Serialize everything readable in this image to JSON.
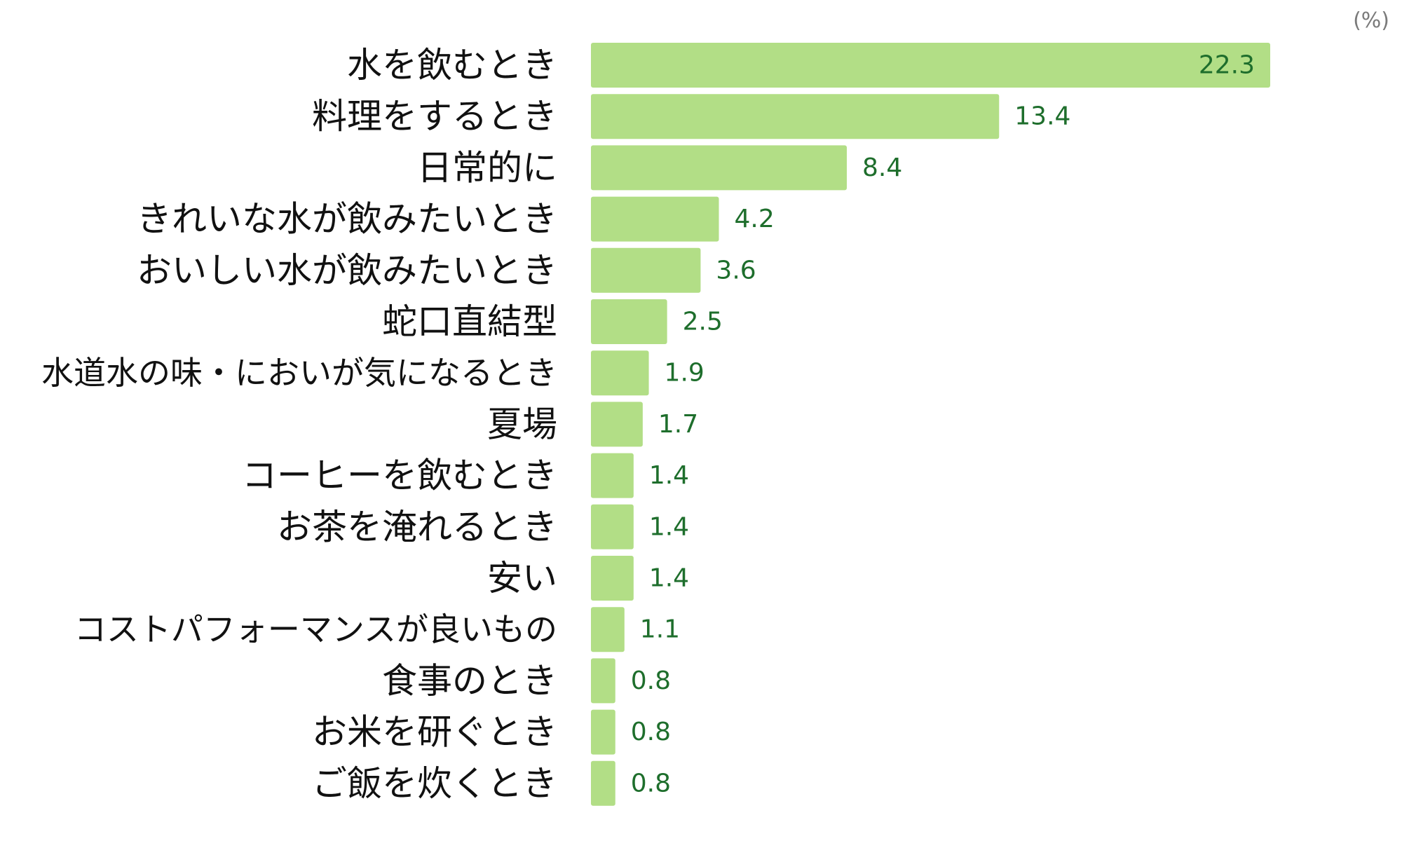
{
  "chart_data": {
    "type": "bar",
    "orientation": "horizontal",
    "unit": "(%)",
    "categories": [
      "水を飲むとき",
      "料理をするとき",
      "日常的に",
      "きれいな水が飲みたいとき",
      "おいしい水が飲みたいとき",
      "蛇口直結型",
      "水道水の味・においが気になるとき",
      "夏場",
      "コーヒーを飲むとき",
      "お茶を淹れるとき",
      "安い",
      "コストパフォーマンスが良いもの",
      "食事のとき",
      "お米を研ぐとき",
      "ご飯を炊くとき"
    ],
    "values": [
      22.3,
      13.4,
      8.4,
      4.2,
      3.6,
      2.5,
      1.9,
      1.7,
      1.4,
      1.4,
      1.4,
      1.1,
      0.8,
      0.8,
      0.8
    ],
    "value_labels": [
      "22.3",
      "13.4",
      "8.4",
      "4.2",
      "3.6",
      "2.5",
      "1.9",
      "1.7",
      "1.4",
      "1.4",
      "1.4",
      "1.1",
      "0.8",
      "0.8",
      "0.8"
    ],
    "xlim": [
      0,
      22.3
    ],
    "grid": false,
    "colors": {
      "bar": "#b2de86",
      "value_text": "#1e6e2c",
      "category_text": "#111111",
      "unit_text": "#7a7a7a",
      "inside_label_text": "#1e6e2c"
    }
  }
}
